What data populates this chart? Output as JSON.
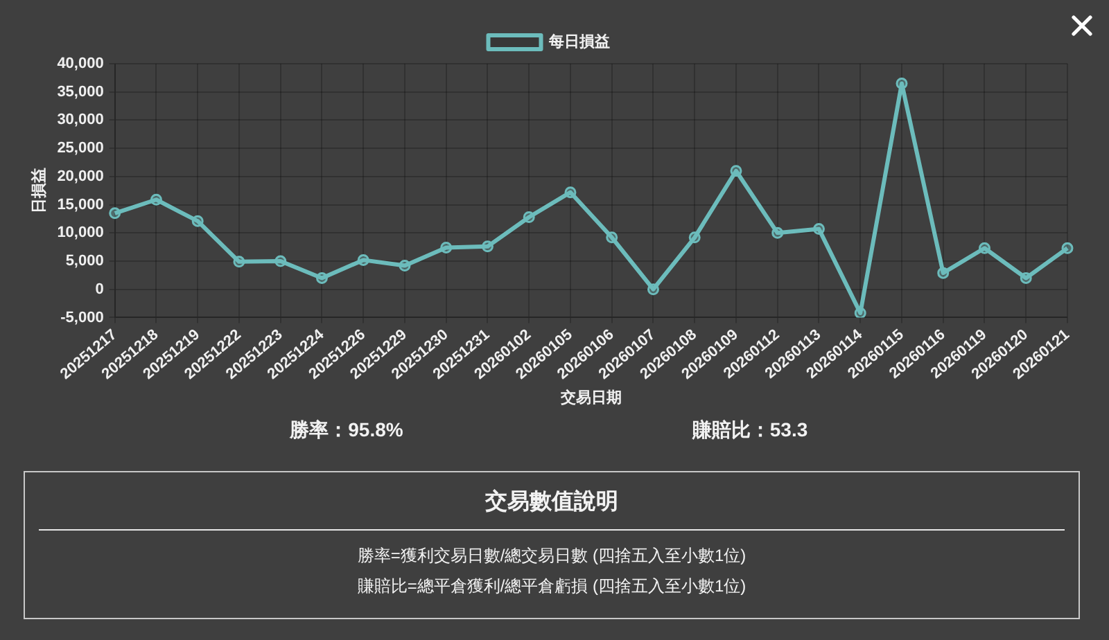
{
  "chart_data": {
    "type": "line",
    "categories": [
      "20251217",
      "20251218",
      "20251219",
      "20251222",
      "20251223",
      "20251224",
      "20251226",
      "20251229",
      "20251230",
      "20251231",
      "20260102",
      "20260105",
      "20260106",
      "20260107",
      "20260108",
      "20260109",
      "20260112",
      "20260113",
      "20260114",
      "20260115",
      "20260116",
      "20260119",
      "20260120",
      "20260121"
    ],
    "series": [
      {
        "name": "每日損益",
        "color": "#6cbcbc",
        "values": [
          13500,
          15900,
          12100,
          4900,
          5000,
          2000,
          5200,
          4200,
          7400,
          7600,
          12800,
          17200,
          9200,
          0,
          9200,
          21000,
          10000,
          10700,
          -4200,
          36500,
          2900,
          7300,
          2000,
          7300
        ]
      }
    ],
    "xlabel": "交易日期",
    "ylabel": "日損益",
    "ylim": [
      -5000,
      40000
    ],
    "yticks": [
      {
        "value": -5000,
        "label": "-5,000"
      },
      {
        "value": 0,
        "label": "0"
      },
      {
        "value": 5000,
        "label": "5,000"
      },
      {
        "value": 10000,
        "label": "10,000"
      },
      {
        "value": 15000,
        "label": "15,000"
      },
      {
        "value": 20000,
        "label": "20,000"
      },
      {
        "value": 25000,
        "label": "25,000"
      },
      {
        "value": 30000,
        "label": "30,000"
      },
      {
        "value": 35000,
        "label": "35,000"
      },
      {
        "value": 40000,
        "label": "40,000"
      }
    ],
    "grid": true,
    "legend": "top",
    "marker": "circle",
    "annotations": [
      "勝率：95.8%",
      "賺賠比：53.3",
      "交易數值說明",
      "勝率=獲利交易日數/總交易日數 (四捨五入至小數1位)",
      "賺賠比=總平倉獲利/總平倉虧損 (四捨五入至小數1位)"
    ]
  }
}
